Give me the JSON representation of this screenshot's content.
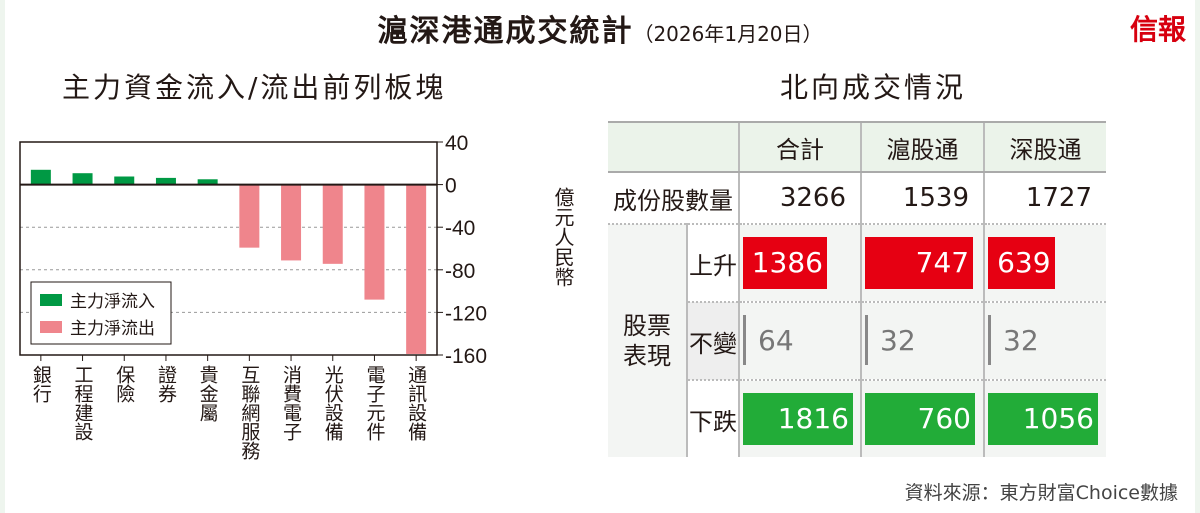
{
  "header": {
    "title": "滬深港通成交統計",
    "date": "（2026年1月20日）",
    "logo": "信報"
  },
  "chart_data": {
    "type": "bar",
    "title": "主力資金流入/流出前列板塊",
    "categories": [
      "銀行",
      "工程建設",
      "保險",
      "證券",
      "貴金屬",
      "互聯網服務",
      "消費電子",
      "光伏設備",
      "電子元件",
      "通訊設備"
    ],
    "values": [
      13.9,
      10.7,
      7.6,
      6.3,
      5.0,
      -59.2,
      -71.2,
      -74.4,
      -108,
      -159
    ],
    "ylabel": "億元人民幣",
    "ylim": [
      -160,
      40
    ],
    "yticks": [
      40,
      0,
      -40,
      -80,
      -120,
      -160
    ],
    "grid": "dashed horizontal",
    "legend": {
      "position": "bottom-left",
      "entries": [
        {
          "label": "主力淨流入",
          "color": "#009944"
        },
        {
          "label": "主力淨流出",
          "color": "#ef858c"
        }
      ]
    },
    "colors": {
      "inflow": "#009944",
      "outflow": "#ef858c"
    }
  },
  "table": {
    "title": "北向成交情況",
    "columns": [
      "合計",
      "滬股通",
      "深股通"
    ],
    "constituents": {
      "label": "成份股數量",
      "values": [
        "3266",
        "1539",
        "1727"
      ]
    },
    "group_label": [
      "股票",
      "表現"
    ],
    "rows": [
      {
        "label": "上升",
        "values": [
          1386,
          747,
          639
        ],
        "color": "#e60012"
      },
      {
        "label": "不變",
        "values": [
          64,
          32,
          32
        ],
        "color": "#888888"
      },
      {
        "label": "下跌",
        "values": [
          1816,
          760,
          1056
        ],
        "color": "#22ac38"
      }
    ]
  },
  "source": "資料來源：東方財富Choice數據"
}
